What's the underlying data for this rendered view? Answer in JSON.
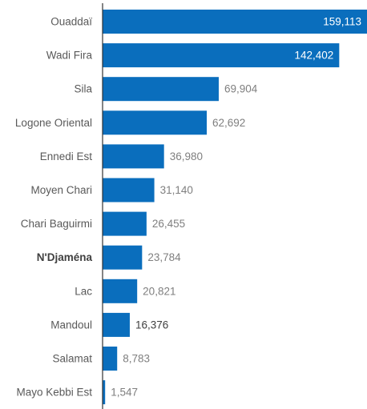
{
  "chart_data": {
    "type": "bar",
    "orientation": "horizontal",
    "categories": [
      "Ouaddaï",
      "Wadi Fira",
      "Sila",
      "Logone Oriental",
      "Ennedi Est",
      "Moyen Chari",
      "Chari Baguirmi",
      "N'Djaména",
      "Lac",
      "Mandoul",
      "Salamat",
      "Mayo Kebbi Est"
    ],
    "values": [
      159113,
      142402,
      69904,
      62692,
      36980,
      31140,
      26455,
      23784,
      20821,
      16376,
      8783,
      1547
    ],
    "value_labels": [
      "159,113",
      "142,402",
      "69,904",
      "62,692",
      "36,980",
      "31,140",
      "26,455",
      "23,784",
      "20,821",
      "16,376",
      "8,783",
      "1,547"
    ],
    "highlighted_category": "N'Djaména",
    "xlim": [
      0,
      159113
    ],
    "grid": false,
    "legend": "none",
    "colors": {
      "bar": "#0a6ebd",
      "axis": "#333333",
      "label_inside": "#ffffff",
      "label_outside": "#7f7f7f",
      "label_outside_dark": "#404040"
    }
  }
}
